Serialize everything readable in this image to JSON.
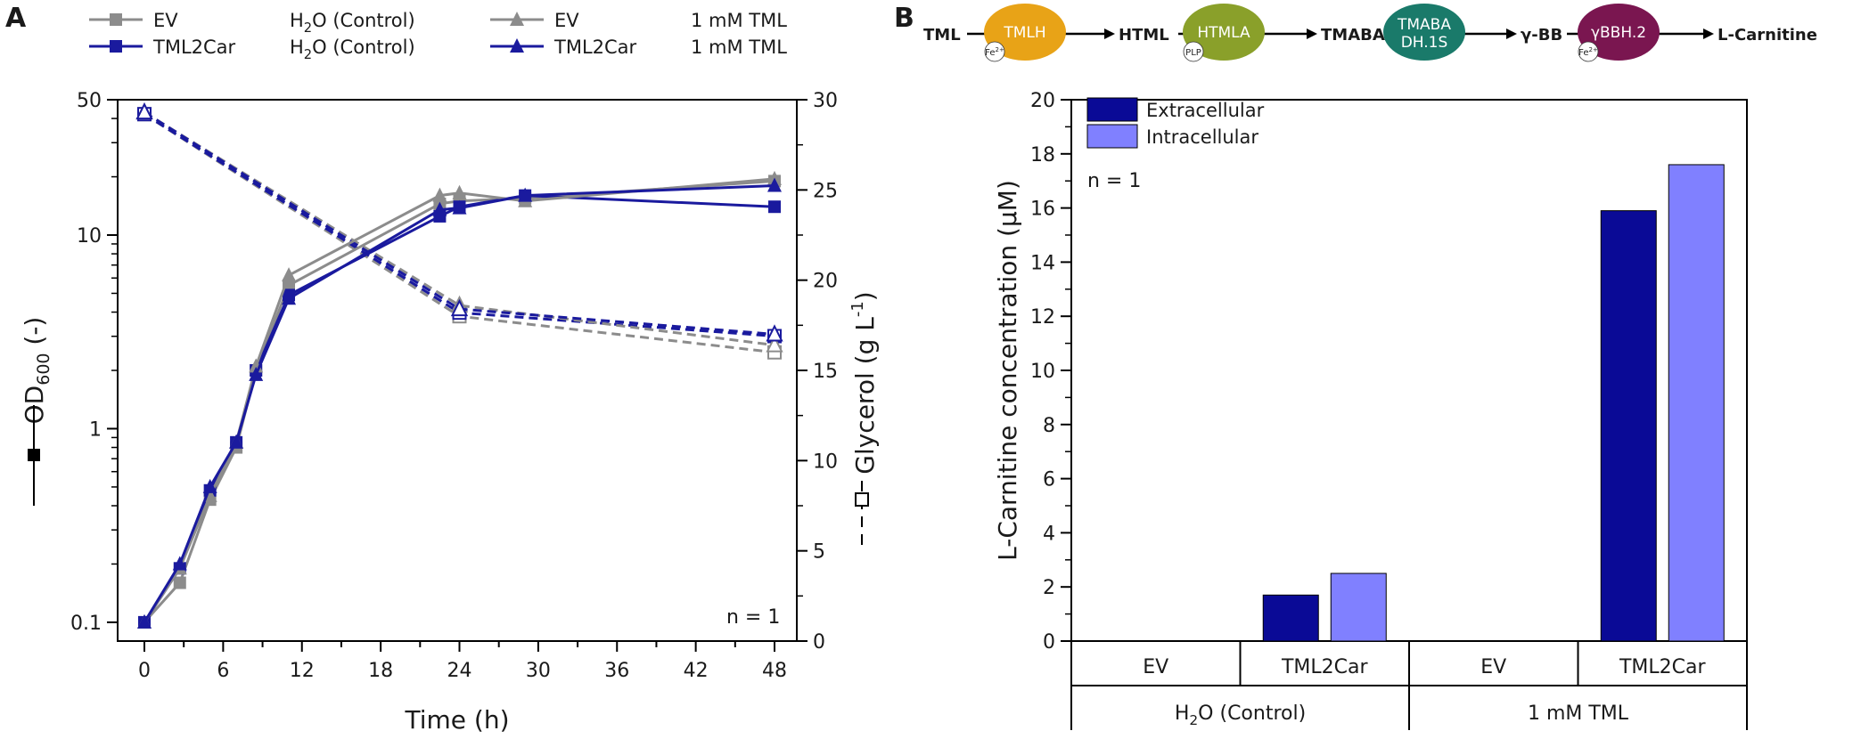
{
  "panel_a_label": "A",
  "panel_b_label": "B",
  "pathway": {
    "substrates": [
      "TML",
      "HTML",
      "TMABA",
      "γ-BB",
      "L-Carnitine"
    ],
    "enzymes": [
      {
        "name": "TMLH",
        "cofactor": "Fe2+",
        "color": "#e8a317"
      },
      {
        "name": "HTMLA",
        "cofactor": "PLP",
        "color": "#8aa02a"
      },
      {
        "name": "TMABA DH.1S",
        "cofactor": "",
        "color": "#1a7a6a"
      },
      {
        "name": "γBBH.2",
        "cofactor": "Fe2+",
        "color": "#7a1650"
      }
    ]
  },
  "chart_data": [
    {
      "type": "line",
      "title": "",
      "xlabel": "Time (h)",
      "ylabel": "OD600 (-)",
      "y2label": "Glycerol (g L-1)",
      "xlim": [
        0,
        48
      ],
      "ylim": [
        0.08,
        50
      ],
      "yscale": "log",
      "y2lim": [
        0,
        30
      ],
      "x_ticks": [
        0,
        6,
        12,
        18,
        24,
        30,
        36,
        42,
        48
      ],
      "y_ticks": [
        "0.1",
        "1",
        "10",
        "50"
      ],
      "y2_ticks": [
        0,
        5,
        10,
        15,
        20,
        25,
        30
      ],
      "annotation": "n = 1",
      "legend": [
        {
          "strain": "EV",
          "condition": "H2O (Control)",
          "marker": "square",
          "color": "#8c8c8c"
        },
        {
          "strain": "TML2Car",
          "condition": "H2O (Control)",
          "marker": "square",
          "color": "#1a1a9e"
        },
        {
          "strain": "EV",
          "condition": "1 mM TML",
          "marker": "triangle",
          "color": "#8c8c8c"
        },
        {
          "strain": "TML2Car",
          "condition": "1 mM TML",
          "marker": "triangle",
          "color": "#1a1a9e"
        }
      ],
      "series": [
        {
          "name": "EV H2O (Control) OD600",
          "axis": "y",
          "marker": "square",
          "color": "#8c8c8c",
          "x": [
            0,
            2.7,
            5,
            7,
            8.5,
            11,
            22.5,
            24,
            29,
            48
          ],
          "values": [
            0.1,
            0.16,
            0.43,
            0.8,
            2.0,
            5.5,
            14.5,
            15.0,
            15.5,
            19.0
          ]
        },
        {
          "name": "TML2Car H2O (Control) OD600",
          "axis": "y",
          "marker": "square",
          "color": "#1a1a9e",
          "x": [
            0,
            2.7,
            5,
            7,
            8.5,
            11,
            22.5,
            24,
            29,
            48
          ],
          "values": [
            0.1,
            0.19,
            0.48,
            0.85,
            2.0,
            4.9,
            12.5,
            14.0,
            16.0,
            14.0
          ]
        },
        {
          "name": "EV 1 mM TML OD600",
          "axis": "y",
          "marker": "triangle",
          "color": "#8c8c8c",
          "x": [
            0,
            2.7,
            5,
            7,
            8.5,
            11,
            22.5,
            24,
            29,
            48
          ],
          "values": [
            0.1,
            0.19,
            0.45,
            0.85,
            2.1,
            6.2,
            16.0,
            16.5,
            15.0,
            19.5
          ]
        },
        {
          "name": "TML2Car 1 mM TML OD600",
          "axis": "y",
          "marker": "triangle",
          "color": "#1a1a9e",
          "x": [
            0,
            2.7,
            5,
            7,
            8.5,
            11,
            22.5,
            24,
            29,
            48
          ],
          "values": [
            0.1,
            0.2,
            0.5,
            0.85,
            1.9,
            4.7,
            13.5,
            13.8,
            16.0,
            18.0
          ]
        },
        {
          "name": "EV H2O (Control) Glycerol",
          "axis": "y2",
          "marker": "open-square",
          "color": "#8c8c8c",
          "x": [
            0,
            24,
            48
          ],
          "values": [
            29.2,
            18.0,
            16.0
          ]
        },
        {
          "name": "TML2Car H2O (Control) Glycerol",
          "axis": "y2",
          "marker": "open-square",
          "color": "#1a1a9e",
          "x": [
            0,
            24,
            48
          ],
          "values": [
            29.2,
            18.2,
            16.9
          ]
        },
        {
          "name": "EV 1 mM TML Glycerol",
          "axis": "y2",
          "marker": "open-triangle",
          "color": "#8c8c8c",
          "x": [
            0,
            24,
            48
          ],
          "values": [
            29.3,
            18.6,
            16.4
          ]
        },
        {
          "name": "TML2Car 1 mM TML Glycerol",
          "axis": "y2",
          "marker": "open-triangle",
          "color": "#1a1a9e",
          "x": [
            0,
            24,
            48
          ],
          "values": [
            29.3,
            18.4,
            17.0
          ]
        }
      ]
    },
    {
      "type": "bar",
      "title": "",
      "ylabel": "L-Carnitine concentration (µM)",
      "ylim": [
        0,
        20
      ],
      "y_ticks": [
        0,
        2,
        4,
        6,
        8,
        10,
        12,
        14,
        16,
        18,
        20
      ],
      "annotation": "n = 1",
      "categories": [
        "EV",
        "TML2Car",
        "EV",
        "TML2Car"
      ],
      "groups": [
        "H2O (Control)",
        "1 mM TML"
      ],
      "series": [
        {
          "name": "Extracellular",
          "color": "#0a0a96",
          "values": [
            0,
            1.7,
            0,
            15.9
          ]
        },
        {
          "name": "Intracellular",
          "color": "#8080ff",
          "values": [
            0,
            2.5,
            0,
            17.6
          ]
        }
      ]
    }
  ]
}
